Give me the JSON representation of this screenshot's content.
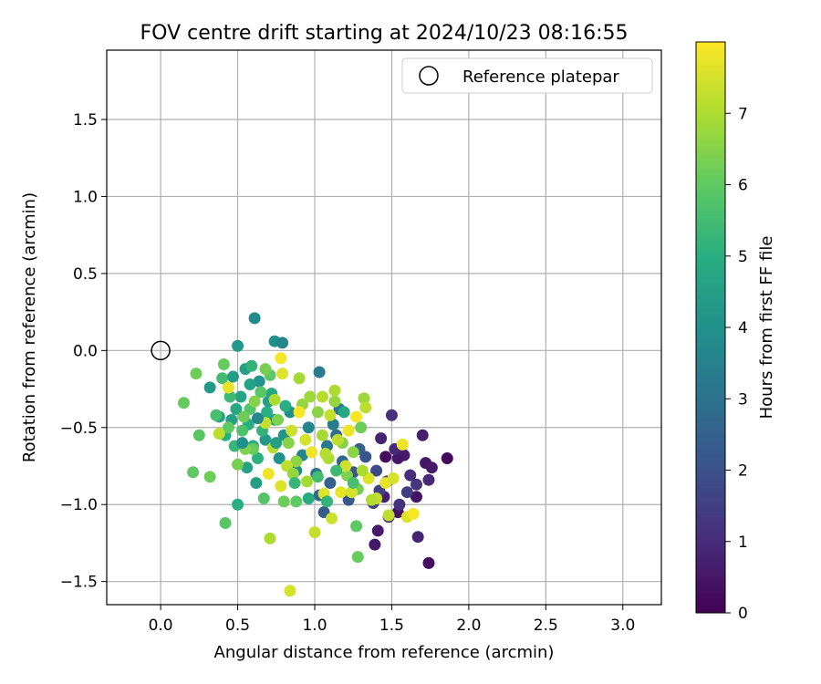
{
  "chart_data": {
    "type": "scatter",
    "title": "FOV centre drift starting at 2024/10/23 08:16:55",
    "xlabel": "Angular distance from reference (arcmin)",
    "ylabel": "Rotation from reference (arcmin)",
    "xlim": [
      -0.35,
      3.25
    ],
    "ylim": [
      -1.65,
      1.95
    ],
    "xticks": [
      0.0,
      0.5,
      1.0,
      1.5,
      2.0,
      2.5,
      3.0
    ],
    "xtick_labels": [
      "0.0",
      "0.5",
      "1.0",
      "1.5",
      "2.0",
      "2.5",
      "3.0"
    ],
    "yticks": [
      -1.5,
      -1.0,
      -0.5,
      0.0,
      0.5,
      1.0,
      1.5
    ],
    "ytick_labels": [
      "−1.5",
      "−1.0",
      "−0.5",
      "0.0",
      "0.5",
      "1.0",
      "1.5"
    ],
    "grid": true,
    "legend": {
      "position": "top-right",
      "label": "Reference platepar"
    },
    "reference_point": {
      "x": 0.0,
      "y": 0.0
    },
    "colorbar": {
      "label": "Hours from first FF file",
      "colormap": "viridis",
      "range": [
        0,
        8
      ],
      "ticks": [
        0,
        1,
        2,
        3,
        4,
        5,
        6,
        7
      ],
      "tick_labels": [
        "0",
        "1",
        "2",
        "3",
        "4",
        "5",
        "6",
        "7"
      ]
    },
    "series": [
      {
        "points": [
          [
            1.86,
            -0.7,
            0.2
          ],
          [
            1.72,
            -0.73,
            0.5
          ],
          [
            1.74,
            -1.38,
            0.3
          ],
          [
            1.67,
            -1.21,
            0.8
          ],
          [
            1.74,
            -0.84,
            0.9
          ],
          [
            1.66,
            -0.95,
            0.4
          ],
          [
            1.7,
            -0.55,
            0.7
          ],
          [
            1.58,
            -0.68,
            0.6
          ],
          [
            1.54,
            -0.7,
            0.5
          ],
          [
            1.52,
            -0.64,
            0.9
          ],
          [
            1.46,
            -0.69,
            0.2
          ],
          [
            1.5,
            -0.42,
            1.1
          ],
          [
            1.43,
            -0.57,
            0.8
          ],
          [
            1.41,
            -1.17,
            0.6
          ],
          [
            1.39,
            -1.26,
            0.5
          ],
          [
            1.54,
            -1.05,
            0.4
          ],
          [
            1.45,
            -0.95,
            0.7
          ],
          [
            1.62,
            -0.81,
            1.0
          ],
          [
            1.66,
            -0.87,
            1.2
          ],
          [
            1.6,
            -0.92,
            1.4
          ],
          [
            1.47,
            -0.85,
            1.3
          ],
          [
            1.42,
            -0.91,
            1.5
          ],
          [
            1.38,
            -0.99,
            1.6
          ],
          [
            1.55,
            -1.0,
            1.1
          ],
          [
            1.76,
            -0.76,
            0.6
          ],
          [
            1.48,
            -1.08,
            0.9
          ],
          [
            1.4,
            -0.78,
            1.8
          ],
          [
            1.33,
            -0.69,
            2.1
          ],
          [
            1.29,
            -0.64,
            2.4
          ],
          [
            1.25,
            -0.79,
            2.0
          ],
          [
            1.22,
            -0.97,
            2.2
          ],
          [
            1.18,
            -0.72,
            2.6
          ],
          [
            1.14,
            -0.55,
            2.8
          ],
          [
            1.1,
            -0.86,
            2.5
          ],
          [
            1.06,
            -1.05,
            2.3
          ],
          [
            1.03,
            -0.94,
            2.7
          ],
          [
            1.01,
            -0.8,
            3.0
          ],
          [
            1.08,
            -0.62,
            3.2
          ],
          [
            1.12,
            -0.48,
            3.4
          ],
          [
            1.16,
            -0.38,
            3.1
          ],
          [
            1.03,
            -0.14,
            3.3
          ],
          [
            0.96,
            -0.5,
            3.6
          ],
          [
            0.92,
            -0.68,
            3.5
          ],
          [
            0.88,
            -0.78,
            3.8
          ],
          [
            0.84,
            -0.4,
            3.9
          ],
          [
            0.8,
            -0.55,
            4.1
          ],
          [
            0.77,
            -0.7,
            4.0
          ],
          [
            0.74,
            -0.45,
            4.2
          ],
          [
            0.7,
            -0.33,
            4.4
          ],
          [
            0.68,
            -0.58,
            4.3
          ],
          [
            0.64,
            -0.2,
            4.1
          ],
          [
            0.61,
            0.21,
            3.8
          ],
          [
            0.74,
            0.06,
            4.0
          ],
          [
            0.79,
            0.05,
            3.6
          ],
          [
            0.5,
            0.03,
            4.2
          ],
          [
            0.55,
            -0.12,
            4.5
          ],
          [
            0.58,
            -0.22,
            4.6
          ],
          [
            0.52,
            -0.3,
            4.7
          ],
          [
            0.49,
            -0.38,
            4.8
          ],
          [
            0.46,
            -0.45,
            4.6
          ],
          [
            0.42,
            -0.55,
            4.9
          ],
          [
            0.38,
            -0.43,
            4.5
          ],
          [
            0.32,
            -0.24,
            4.3
          ],
          [
            0.57,
            -0.48,
            5.0
          ],
          [
            0.6,
            -0.62,
            4.9
          ],
          [
            0.63,
            -0.7,
            5.1
          ],
          [
            0.66,
            -0.52,
            5.2
          ],
          [
            0.69,
            -0.4,
            5.0
          ],
          [
            0.72,
            -0.28,
            4.8
          ],
          [
            0.62,
            -0.86,
            4.4
          ],
          [
            0.56,
            -0.76,
            4.6
          ],
          [
            0.48,
            -0.62,
            5.3
          ],
          [
            0.45,
            -0.3,
            5.4
          ],
          [
            0.4,
            -0.18,
            5.5
          ],
          [
            0.36,
            -0.42,
            5.6
          ],
          [
            0.5,
            -1.0,
            5.0
          ],
          [
            0.53,
            -0.52,
            5.7
          ],
          [
            0.58,
            -0.38,
            5.8
          ],
          [
            0.65,
            -0.27,
            5.9
          ],
          [
            0.71,
            -0.16,
            6.0
          ],
          [
            0.67,
            -0.96,
            5.8
          ],
          [
            0.6,
            -0.64,
            6.1
          ],
          [
            0.54,
            -0.43,
            6.2
          ],
          [
            0.44,
            -0.5,
            6.0
          ],
          [
            0.41,
            -0.09,
            6.1
          ],
          [
            0.23,
            -0.15,
            6.2
          ],
          [
            0.15,
            -0.34,
            6.1
          ],
          [
            0.25,
            -0.55,
            5.9
          ],
          [
            0.21,
            -0.79,
            6.0
          ],
          [
            0.32,
            -0.82,
            6.2
          ],
          [
            0.42,
            -1.12,
            5.9
          ],
          [
            0.5,
            -0.74,
            6.3
          ],
          [
            0.55,
            -0.64,
            6.4
          ],
          [
            0.61,
            -0.33,
            6.5
          ],
          [
            0.68,
            -0.12,
            6.3
          ],
          [
            0.76,
            -0.45,
            6.4
          ],
          [
            0.83,
            -0.6,
            6.5
          ],
          [
            0.88,
            -0.72,
            6.6
          ],
          [
            0.92,
            -0.35,
            6.7
          ],
          [
            0.97,
            -0.3,
            6.8
          ],
          [
            1.02,
            -0.4,
            6.6
          ],
          [
            1.05,
            -0.55,
            6.9
          ],
          [
            1.09,
            -0.7,
            7.0
          ],
          [
            1.13,
            -0.33,
            6.7
          ],
          [
            1.18,
            -0.6,
            6.5
          ],
          [
            1.21,
            -0.81,
            6.4
          ],
          [
            1.25,
            -0.66,
            6.6
          ],
          [
            1.28,
            -0.9,
            6.3
          ],
          [
            1.32,
            -0.31,
            6.8
          ],
          [
            1.3,
            -0.5,
            6.2
          ],
          [
            1.27,
            -1.14,
            6.0
          ],
          [
            1.28,
            -1.34,
            6.1
          ],
          [
            0.88,
            -0.98,
            6.0
          ],
          [
            0.8,
            -0.98,
            6.2
          ],
          [
            0.9,
            -0.18,
            6.9
          ],
          [
            1.05,
            -0.3,
            7.1
          ],
          [
            1.1,
            -0.42,
            7.3
          ],
          [
            1.15,
            -0.58,
            7.2
          ],
          [
            1.2,
            -0.75,
            7.4
          ],
          [
            1.24,
            -0.92,
            7.5
          ],
          [
            1.35,
            -0.83,
            7.6
          ],
          [
            1.4,
            -0.96,
            7.3
          ],
          [
            1.46,
            -0.86,
            7.7
          ],
          [
            1.51,
            -0.83,
            7.5
          ],
          [
            1.57,
            -0.61,
            7.8
          ],
          [
            1.6,
            -1.08,
            7.6
          ],
          [
            1.64,
            -1.06,
            7.9
          ],
          [
            1.48,
            -1.07,
            7.2
          ],
          [
            1.37,
            -0.97,
            7.1
          ],
          [
            1.31,
            -0.78,
            7.0
          ],
          [
            1.22,
            -0.52,
            7.8
          ],
          [
            1.27,
            -0.43,
            7.9
          ],
          [
            1.17,
            -0.92,
            7.7
          ],
          [
            1.11,
            -1.09,
            7.4
          ],
          [
            1.0,
            -1.18,
            7.3
          ],
          [
            1.06,
            -0.93,
            7.6
          ],
          [
            0.98,
            -0.66,
            7.8
          ],
          [
            0.94,
            -0.58,
            7.5
          ],
          [
            0.9,
            -0.4,
            7.9
          ],
          [
            0.85,
            -0.52,
            7.4
          ],
          [
            0.82,
            -0.75,
            7.2
          ],
          [
            0.78,
            -0.88,
            7.6
          ],
          [
            0.73,
            -0.63,
            7.1
          ],
          [
            0.7,
            -0.8,
            7.8
          ],
          [
            0.71,
            -1.22,
            7.0
          ],
          [
            0.84,
            -1.56,
            7.5
          ],
          [
            0.79,
            -0.15,
            7.6
          ],
          [
            0.78,
            -0.05,
            7.9
          ],
          [
            0.74,
            -0.32,
            7.0
          ],
          [
            0.68,
            -0.47,
            7.3
          ],
          [
            0.44,
            -0.24,
            7.7
          ],
          [
            0.38,
            -0.54,
            7.2
          ],
          [
            0.86,
            -0.8,
            6.7
          ],
          [
            0.95,
            -0.85,
            6.9
          ],
          [
            1.07,
            -0.67,
            7.1
          ],
          [
            1.13,
            -0.26,
            7.0
          ],
          [
            1.33,
            -0.37,
            7.2
          ],
          [
            1.02,
            -0.82,
            5.5
          ],
          [
            1.08,
            -0.98,
            5.2
          ],
          [
            1.14,
            -0.78,
            5.4
          ],
          [
            1.19,
            -0.4,
            4.8
          ],
          [
            1.25,
            -0.86,
            5.6
          ],
          [
            0.96,
            -0.96,
            4.9
          ],
          [
            0.87,
            -0.86,
            5.3
          ],
          [
            0.59,
            -0.1,
            5.2
          ],
          [
            0.47,
            -0.17,
            4.4
          ],
          [
            0.53,
            -0.6,
            4.0
          ],
          [
            0.63,
            -0.44,
            3.7
          ],
          [
            0.75,
            -0.6,
            4.5
          ],
          [
            0.81,
            -0.36,
            5.0
          ]
        ]
      }
    ]
  }
}
